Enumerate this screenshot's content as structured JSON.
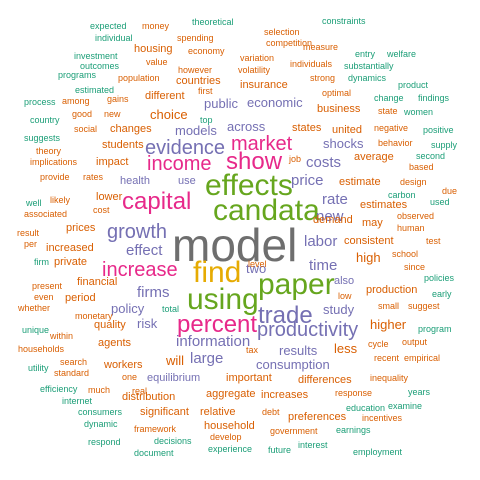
{
  "words": {
    "model": "model",
    "find": "find",
    "using": "using",
    "paper": "paper",
    "effects": "effects",
    "candata": "candata",
    "trade": "trade",
    "percent": "percent",
    "increase": "increase",
    "income": "income",
    "show": "show",
    "capital": "capital",
    "market": "market",
    "evidence": "evidence",
    "growth": "growth",
    "productivity": "productivity",
    "information": "information",
    "labor": "labor",
    "price": "price",
    "costs": "costs",
    "effect": "effect",
    "firms": "firms",
    "large": "large",
    "time": "time",
    "new": "new",
    "rate": "rate",
    "study": "study",
    "results": "results",
    "consumption": "consumption",
    "across": "across",
    "public": "public",
    "economic": "economic",
    "states": "states",
    "united": "united",
    "models": "models",
    "choice": "choice",
    "shocks": "shocks",
    "two": "two",
    "policy": "policy",
    "risk": "risk",
    "equilibrium": "equilibrium",
    "important": "important",
    "aggregate": "aggregate",
    "expected": "expected",
    "money": "money",
    "theoretical": "theoretical",
    "constraints": "constraints",
    "individual": "individual",
    "selection": "selection",
    "spending": "spending",
    "competition": "competition",
    "investment": "investment",
    "housing": "housing",
    "economy": "economy",
    "measure": "measure",
    "entry": "entry",
    "welfare": "welfare",
    "outcomes": "outcomes",
    "variation": "variation",
    "individuals": "individuals",
    "value": "value",
    "substantially": "substantially",
    "programs": "programs",
    "volatility": "volatility",
    "however": "however",
    "population": "population",
    "countries": "countries",
    "strong": "strong",
    "dynamics": "dynamics",
    "product": "product",
    "estimated": "estimated",
    "insurance": "insurance",
    "first": "first",
    "optimal": "optimal",
    "process": "process",
    "among": "among",
    "gains": "gains",
    "different": "different",
    "change": "change",
    "findings": "findings",
    "country": "country",
    "good": "good",
    "top": "top",
    "business": "business",
    "state": "state",
    "women": "women",
    "new_small": "new",
    "social": "social",
    "changes": "changes",
    "negative": "negative",
    "positive": "positive",
    "suggests": "suggests",
    "theory": "theory",
    "students": "students",
    "behavior": "behavior",
    "supply": "supply",
    "implications": "implications",
    "impact": "impact",
    "job": "job",
    "average": "average",
    "second": "second",
    "provide": "provide",
    "rates": "rates",
    "health": "health",
    "based": "based",
    "use": "use",
    "estimate": "estimate",
    "design": "design",
    "likely": "likely",
    "lower": "lower",
    "well": "well",
    "estimates": "estimates",
    "due": "due",
    "used": "used",
    "associated": "associated",
    "cost": "cost",
    "carbon": "carbon",
    "observed": "observed",
    "prices": "prices",
    "may": "may",
    "human": "human",
    "result": "result",
    "consistent": "consistent",
    "per": "per",
    "test": "test",
    "increased": "increased",
    "demand": "demand",
    "school": "school",
    "private": "private",
    "high": "high",
    "since": "since",
    "firm": "firm",
    "financial": "financial",
    "also": "also",
    "level": "level",
    "policies": "policies",
    "present": "present",
    "production": "production",
    "early": "early",
    "even": "even",
    "low": "low",
    "period": "period",
    "small": "small",
    "suggest": "suggest",
    "whether": "whether",
    "monetary": "monetary",
    "total": "total",
    "unique": "unique",
    "quality": "quality",
    "higher": "higher",
    "program": "program",
    "within": "within",
    "agents": "agents",
    "less": "less",
    "output": "output",
    "households": "households",
    "tax": "tax",
    "cycle": "cycle",
    "search": "search",
    "will": "will",
    "recent": "recent",
    "empirical": "empirical",
    "utility": "utility",
    "standard": "standard",
    "workers": "workers",
    "differences": "differences",
    "efficiency": "efficiency",
    "much": "much",
    "one": "one",
    "inequality": "inequality",
    "internet": "internet",
    "real": "real",
    "distribution": "distribution",
    "increases": "increases",
    "response": "response",
    "years": "years",
    "consumers": "consumers",
    "significant": "significant",
    "relative": "relative",
    "debt": "debt",
    "preferences": "preferences",
    "education": "education",
    "examine": "examine",
    "dynamic": "dynamic",
    "framework": "framework",
    "household": "household",
    "government": "government",
    "incentives": "incentives",
    "respond": "respond",
    "decisions": "decisions",
    "develop": "develop",
    "earnings": "earnings",
    "document": "document",
    "experience": "experience",
    "future": "future",
    "interest": "interest",
    "employment": "employment"
  }
}
